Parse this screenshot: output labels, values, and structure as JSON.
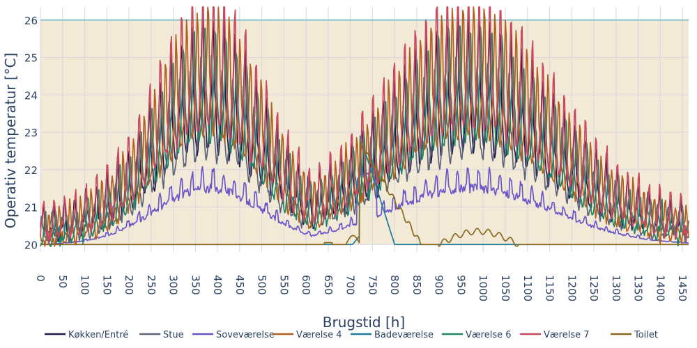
{
  "chart_data": {
    "type": "line",
    "xlabel": "Brugstid [h]",
    "ylabel": "Operativ temperatur [°C]",
    "xlim": [
      0,
      1464
    ],
    "ylim": [
      19.8,
      26.35
    ],
    "x_ticks": [
      0,
      50,
      100,
      150,
      200,
      250,
      300,
      350,
      400,
      450,
      500,
      550,
      600,
      650,
      700,
      750,
      800,
      850,
      900,
      950,
      1000,
      1050,
      1100,
      1150,
      1200,
      1250,
      1300,
      1350,
      1400,
      1450
    ],
    "y_ticks": [
      20,
      21,
      22,
      23,
      24,
      25,
      26
    ],
    "comfort_band": {
      "lower": 20,
      "upper": 26,
      "color": "#f2e9d6"
    },
    "upper_limit_line_color": "#8fc7cf",
    "grid": true,
    "legend_position": "bottom",
    "series": [
      {
        "name": "Køkken/Entré",
        "color": "#221a4f",
        "shape": "Køkken/Entré",
        "start": 20.4,
        "peak": 23.6,
        "amplitude": 1.6,
        "spikiness": 1.0
      },
      {
        "name": "Stue",
        "color": "#5b6577",
        "shape": "Stue",
        "start": 20.3,
        "peak": 23.1,
        "amplitude": 1.2,
        "spikiness": 0.7
      },
      {
        "name": "Soveværelse",
        "color": "#6a56c9",
        "shape": "Soveværelse",
        "start": 20.0,
        "peak": 22.0,
        "amplitude": 0.5,
        "spikiness": 0.4
      },
      {
        "name": "Værelse 4",
        "color": "#b3601d",
        "shape": "Værelse 4",
        "start": 20.2,
        "peak": 23.9,
        "amplitude": 1.5,
        "spikiness": 1.1
      },
      {
        "name": "Badeværelse",
        "color": "#1a7d9b",
        "shape": "Badeværelse",
        "start": 20.0,
        "peak": 22.9,
        "amplitude": 0.0,
        "spikiness": 0.0
      },
      {
        "name": "Værelse 6",
        "color": "#1b8566",
        "shape": "Værelse 6",
        "start": 20.2,
        "peak": 23.7,
        "amplitude": 1.4,
        "spikiness": 0.9
      },
      {
        "name": "Værelse 7",
        "color": "#c94a5e",
        "shape": "Værelse 7",
        "start": 20.4,
        "peak": 24.2,
        "amplitude": 1.6,
        "spikiness": 1.2
      },
      {
        "name": "Toilet",
        "color": "#8a6a1c",
        "shape": "Toilet",
        "start": 20.0,
        "peak": 22.7,
        "amplitude": 0.0,
        "spikiness": 0.0
      }
    ]
  }
}
